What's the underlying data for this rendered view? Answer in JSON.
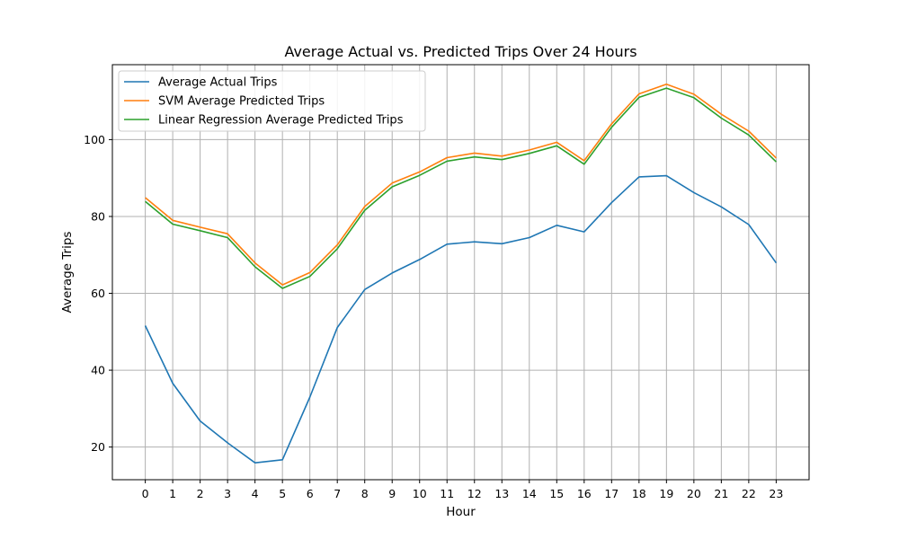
{
  "chart_data": {
    "type": "line",
    "title": "Average Actual vs. Predicted Trips Over 24 Hours",
    "xlabel": "Hour",
    "ylabel": "Average Trips",
    "x": [
      0,
      1,
      2,
      3,
      4,
      5,
      6,
      7,
      8,
      9,
      10,
      11,
      12,
      13,
      14,
      15,
      16,
      17,
      18,
      19,
      20,
      21,
      22,
      23
    ],
    "xlim": [
      -1.2,
      24.2
    ],
    "ylim": [
      11.5,
      119.5
    ],
    "yticks": [
      20,
      40,
      60,
      80,
      100
    ],
    "grid": true,
    "legend_position": "top-left",
    "series": [
      {
        "name": "Average Actual Trips",
        "color": "#1f77b4",
        "values": [
          51.6,
          36.6,
          26.8,
          21.1,
          15.9,
          16.7,
          33.0,
          51.1,
          61.0,
          65.3,
          68.8,
          72.8,
          73.4,
          72.9,
          74.5,
          77.7,
          76.0,
          83.6,
          90.3,
          90.6,
          86.2,
          82.5,
          77.9,
          67.9
        ]
      },
      {
        "name": "SVM Average Predicted Trips",
        "color": "#ff7f0e",
        "values": [
          84.9,
          79.0,
          77.2,
          75.5,
          67.9,
          62.2,
          65.4,
          72.6,
          82.6,
          88.7,
          91.6,
          95.3,
          96.5,
          95.7,
          97.3,
          99.3,
          94.5,
          104.1,
          111.9,
          114.4,
          111.8,
          106.6,
          102.2,
          95.2
        ]
      },
      {
        "name": "Linear Regression Average Predicted Trips",
        "color": "#2ca02c",
        "values": [
          83.9,
          78.0,
          76.3,
          74.5,
          66.9,
          61.3,
          64.4,
          71.6,
          81.6,
          87.7,
          90.7,
          94.4,
          95.5,
          94.8,
          96.4,
          98.4,
          93.6,
          103.2,
          111.0,
          113.4,
          110.9,
          105.6,
          101.2,
          94.2
        ]
      }
    ]
  }
}
